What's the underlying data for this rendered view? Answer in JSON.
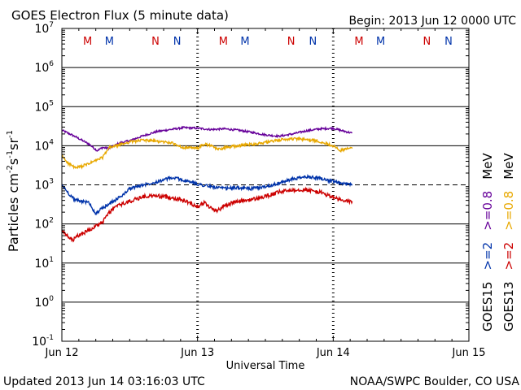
{
  "chart_data": {
    "type": "line",
    "title": "GOES Electron Flux (5 minute data)",
    "begin_label": "Begin: 2013 Jun 12 0000 UTC",
    "xlabel": "Universal Time",
    "ylabel_parts": {
      "base": "Particles cm",
      "exp1": "-2",
      "s": "s",
      "exp2": "-1",
      "sr": "sr",
      "exp3": "-1"
    },
    "footer_left": "Updated 2013 Jun 14 03:16:03 UTC",
    "footer_right": "NOAA/SWPC Boulder, CO USA",
    "x_range_days": [
      0,
      3
    ],
    "x_ticks": [
      {
        "day": 0,
        "label": "Jun 12"
      },
      {
        "day": 1,
        "label": "Jun 13"
      },
      {
        "day": 2,
        "label": "Jun 14"
      },
      {
        "day": 3,
        "label": "Jun 15"
      }
    ],
    "y_scale": "log",
    "y_range_exp": [
      -1,
      7
    ],
    "y_ticks": [
      {
        "exp": 7,
        "base": "10",
        "sup": "7"
      },
      {
        "exp": 6,
        "base": "10",
        "sup": "6"
      },
      {
        "exp": 5,
        "base": "10",
        "sup": "5"
      },
      {
        "exp": 4,
        "base": "10",
        "sup": "4"
      },
      {
        "exp": 3,
        "base": "10",
        "sup": "3"
      },
      {
        "exp": 2,
        "base": "10",
        "sup": "2"
      },
      {
        "exp": 1,
        "base": "10",
        "sup": "1"
      },
      {
        "exp": 0,
        "base": "10",
        "sup": "0"
      },
      {
        "exp": -1,
        "base": "10",
        "sup": "-1"
      }
    ],
    "threshold_exp": 3,
    "midnight_markers_day": [
      1,
      2
    ],
    "local_markers": [
      {
        "label": "M",
        "day": 0.19,
        "color": "#cc0000"
      },
      {
        "label": "M",
        "day": 0.35,
        "color": "#0033aa"
      },
      {
        "label": "N",
        "day": 0.69,
        "color": "#cc0000"
      },
      {
        "label": "N",
        "day": 0.85,
        "color": "#0033aa"
      },
      {
        "label": "M",
        "day": 1.19,
        "color": "#cc0000"
      },
      {
        "label": "M",
        "day": 1.35,
        "color": "#0033aa"
      },
      {
        "label": "N",
        "day": 1.69,
        "color": "#cc0000"
      },
      {
        "label": "N",
        "day": 1.85,
        "color": "#0033aa"
      },
      {
        "label": "M",
        "day": 2.19,
        "color": "#cc0000"
      },
      {
        "label": "M",
        "day": 2.35,
        "color": "#0033aa"
      },
      {
        "label": "N",
        "day": 2.69,
        "color": "#cc0000"
      },
      {
        "label": "N",
        "day": 2.85,
        "color": "#0033aa"
      }
    ],
    "legend_columns": [
      {
        "sat": "GOES15",
        "items": [
          {
            "text": ">=2",
            "color": "#0033aa"
          },
          {
            "text": ">=0.8",
            "color": "#660099"
          },
          {
            "text": "MeV",
            "color": "#000000"
          }
        ]
      },
      {
        "sat": "GOES13",
        "items": [
          {
            "text": ">=2",
            "color": "#cc0000"
          },
          {
            "text": ">=0.8",
            "color": "#e8a800"
          },
          {
            "text": "MeV",
            "color": "#000000"
          }
        ]
      }
    ],
    "series": [
      {
        "name": "GOES15 >=0.8 MeV",
        "color": "#660099",
        "noise": 0.025,
        "points": [
          [
            0,
            25000
          ],
          [
            0.1,
            17000
          ],
          [
            0.2,
            11000
          ],
          [
            0.26,
            7500
          ],
          [
            0.3,
            9000
          ],
          [
            0.35,
            8500
          ],
          [
            0.42,
            11500
          ],
          [
            0.5,
            13500
          ],
          [
            0.6,
            18000
          ],
          [
            0.7,
            23000
          ],
          [
            0.8,
            26000
          ],
          [
            0.9,
            29000
          ],
          [
            1.0,
            28000
          ],
          [
            1.1,
            26000
          ],
          [
            1.2,
            27000
          ],
          [
            1.3,
            25000
          ],
          [
            1.4,
            22000
          ],
          [
            1.5,
            19000
          ],
          [
            1.6,
            17500
          ],
          [
            1.7,
            20000
          ],
          [
            1.8,
            24000
          ],
          [
            1.9,
            27000
          ],
          [
            2.0,
            28000
          ],
          [
            2.05,
            25000
          ],
          [
            2.14,
            21000
          ]
        ]
      },
      {
        "name": "GOES13 >=0.8 MeV",
        "color": "#e8a800",
        "noise": 0.035,
        "points": [
          [
            0,
            5500
          ],
          [
            0.05,
            3500
          ],
          [
            0.1,
            2700
          ],
          [
            0.15,
            3000
          ],
          [
            0.2,
            3500
          ],
          [
            0.3,
            5000
          ],
          [
            0.35,
            9000
          ],
          [
            0.4,
            10000
          ],
          [
            0.5,
            12500
          ],
          [
            0.6,
            14000
          ],
          [
            0.7,
            13000
          ],
          [
            0.8,
            12000
          ],
          [
            0.9,
            9000
          ],
          [
            1.0,
            8500
          ],
          [
            1.05,
            11000
          ],
          [
            1.1,
            10000
          ],
          [
            1.15,
            8000
          ],
          [
            1.2,
            9000
          ],
          [
            1.3,
            10000
          ],
          [
            1.4,
            11000
          ],
          [
            1.5,
            12000
          ],
          [
            1.6,
            14000
          ],
          [
            1.7,
            15000
          ],
          [
            1.8,
            14500
          ],
          [
            1.9,
            13000
          ],
          [
            2.0,
            10000
          ],
          [
            2.05,
            7500
          ],
          [
            2.14,
            9000
          ]
        ]
      },
      {
        "name": "GOES15 >=2 MeV",
        "color": "#0033aa",
        "noise": 0.04,
        "points": [
          [
            0,
            1000
          ],
          [
            0.05,
            600
          ],
          [
            0.1,
            400
          ],
          [
            0.15,
            380
          ],
          [
            0.2,
            350
          ],
          [
            0.25,
            180
          ],
          [
            0.28,
            230
          ],
          [
            0.3,
            250
          ],
          [
            0.35,
            330
          ],
          [
            0.4,
            420
          ],
          [
            0.45,
            550
          ],
          [
            0.5,
            800
          ],
          [
            0.6,
            1000
          ],
          [
            0.7,
            1200
          ],
          [
            0.8,
            1500
          ],
          [
            0.85,
            1450
          ],
          [
            0.9,
            1300
          ],
          [
            1.0,
            1050
          ],
          [
            1.1,
            900
          ],
          [
            1.2,
            800
          ],
          [
            1.3,
            850
          ],
          [
            1.4,
            800
          ],
          [
            1.5,
            900
          ],
          [
            1.6,
            1100
          ],
          [
            1.7,
            1400
          ],
          [
            1.8,
            1600
          ],
          [
            1.9,
            1500
          ],
          [
            2.0,
            1200
          ],
          [
            2.08,
            1050
          ],
          [
            2.14,
            1050
          ]
        ]
      },
      {
        "name": "GOES13 >=2 MeV",
        "color": "#cc0000",
        "noise": 0.05,
        "points": [
          [
            0,
            65
          ],
          [
            0.05,
            45
          ],
          [
            0.08,
            38
          ],
          [
            0.12,
            50
          ],
          [
            0.2,
            70
          ],
          [
            0.3,
            110
          ],
          [
            0.35,
            200
          ],
          [
            0.4,
            280
          ],
          [
            0.5,
            380
          ],
          [
            0.6,
            500
          ],
          [
            0.7,
            520
          ],
          [
            0.8,
            480
          ],
          [
            0.9,
            400
          ],
          [
            1.0,
            280
          ],
          [
            1.05,
            350
          ],
          [
            1.1,
            250
          ],
          [
            1.15,
            220
          ],
          [
            1.2,
            300
          ],
          [
            1.3,
            380
          ],
          [
            1.4,
            420
          ],
          [
            1.5,
            500
          ],
          [
            1.6,
            650
          ],
          [
            1.7,
            750
          ],
          [
            1.8,
            750
          ],
          [
            1.9,
            650
          ],
          [
            2.0,
            480
          ],
          [
            2.08,
            380
          ],
          [
            2.14,
            380
          ]
        ]
      }
    ]
  }
}
